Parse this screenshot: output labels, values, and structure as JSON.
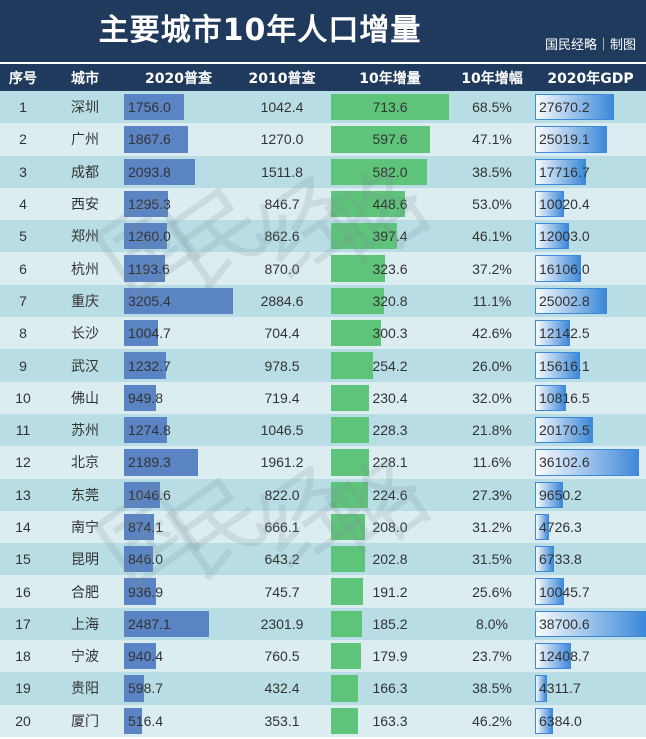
{
  "title": "主要城市10年人口增量",
  "credit": "国民经略｜制图",
  "watermark": "国民经略",
  "colors": {
    "header_bg": "#1f3a5c",
    "row_dark": "#b8dde4",
    "row_light": "#dcedf1",
    "bar_2020": "#5b84c4",
    "bar_increase": "#5ec47a",
    "bar_gdp": "#2f7fd8"
  },
  "chart_data": {
    "type": "table",
    "title": "主要城市10年人口增量",
    "columns": [
      "序号",
      "城市",
      "2020普查",
      "2010普查",
      "10年增量",
      "10年增幅",
      "2020年GDP"
    ],
    "rows": [
      {
        "rank": "1",
        "city": "深圳",
        "pop2020": "1756.0",
        "pop2010": "1042.4",
        "increase": "713.6",
        "growth": "68.5%",
        "gdp": "27670.2"
      },
      {
        "rank": "2",
        "city": "广州",
        "pop2020": "1867.6",
        "pop2010": "1270.0",
        "increase": "597.6",
        "growth": "47.1%",
        "gdp": "25019.1"
      },
      {
        "rank": "3",
        "city": "成都",
        "pop2020": "2093.8",
        "pop2010": "1511.8",
        "increase": "582.0",
        "growth": "38.5%",
        "gdp": "17716.7"
      },
      {
        "rank": "4",
        "city": "西安",
        "pop2020": "1295.3",
        "pop2010": "846.7",
        "increase": "448.6",
        "growth": "53.0%",
        "gdp": "10020.4"
      },
      {
        "rank": "5",
        "city": "郑州",
        "pop2020": "1260.0",
        "pop2010": "862.6",
        "increase": "397.4",
        "growth": "46.1%",
        "gdp": "12003.0"
      },
      {
        "rank": "6",
        "city": "杭州",
        "pop2020": "1193.6",
        "pop2010": "870.0",
        "increase": "323.6",
        "growth": "37.2%",
        "gdp": "16106.0"
      },
      {
        "rank": "7",
        "city": "重庆",
        "pop2020": "3205.4",
        "pop2010": "2884.6",
        "increase": "320.8",
        "growth": "11.1%",
        "gdp": "25002.8"
      },
      {
        "rank": "8",
        "city": "长沙",
        "pop2020": "1004.7",
        "pop2010": "704.4",
        "increase": "300.3",
        "growth": "42.6%",
        "gdp": "12142.5"
      },
      {
        "rank": "9",
        "city": "武汉",
        "pop2020": "1232.7",
        "pop2010": "978.5",
        "increase": "254.2",
        "growth": "26.0%",
        "gdp": "15616.1"
      },
      {
        "rank": "10",
        "city": "佛山",
        "pop2020": "949.8",
        "pop2010": "719.4",
        "increase": "230.4",
        "growth": "32.0%",
        "gdp": "10816.5"
      },
      {
        "rank": "11",
        "city": "苏州",
        "pop2020": "1274.8",
        "pop2010": "1046.5",
        "increase": "228.3",
        "growth": "21.8%",
        "gdp": "20170.5"
      },
      {
        "rank": "12",
        "city": "北京",
        "pop2020": "2189.3",
        "pop2010": "1961.2",
        "increase": "228.1",
        "growth": "11.6%",
        "gdp": "36102.6"
      },
      {
        "rank": "13",
        "city": "东莞",
        "pop2020": "1046.6",
        "pop2010": "822.0",
        "increase": "224.6",
        "growth": "27.3%",
        "gdp": "9650.2"
      },
      {
        "rank": "14",
        "city": "南宁",
        "pop2020": "874.1",
        "pop2010": "666.1",
        "increase": "208.0",
        "growth": "31.2%",
        "gdp": "4726.3"
      },
      {
        "rank": "15",
        "city": "昆明",
        "pop2020": "846.0",
        "pop2010": "643.2",
        "increase": "202.8",
        "growth": "31.5%",
        "gdp": "6733.8"
      },
      {
        "rank": "16",
        "city": "合肥",
        "pop2020": "936.9",
        "pop2010": "745.7",
        "increase": "191.2",
        "growth": "25.6%",
        "gdp": "10045.7"
      },
      {
        "rank": "17",
        "city": "上海",
        "pop2020": "2487.1",
        "pop2010": "2301.9",
        "increase": "185.2",
        "growth": "8.0%",
        "gdp": "38700.6"
      },
      {
        "rank": "18",
        "city": "宁波",
        "pop2020": "940.4",
        "pop2010": "760.5",
        "increase": "179.9",
        "growth": "23.7%",
        "gdp": "12408.7"
      },
      {
        "rank": "19",
        "city": "贵阳",
        "pop2020": "598.7",
        "pop2010": "432.4",
        "increase": "166.3",
        "growth": "38.5%",
        "gdp": "4311.7"
      },
      {
        "rank": "20",
        "city": "厦门",
        "pop2020": "516.4",
        "pop2010": "353.1",
        "increase": "163.3",
        "growth": "46.2%",
        "gdp": "6384.0"
      }
    ],
    "bar_columns": [
      "2020普查",
      "10年增量",
      "2020年GDP"
    ]
  }
}
